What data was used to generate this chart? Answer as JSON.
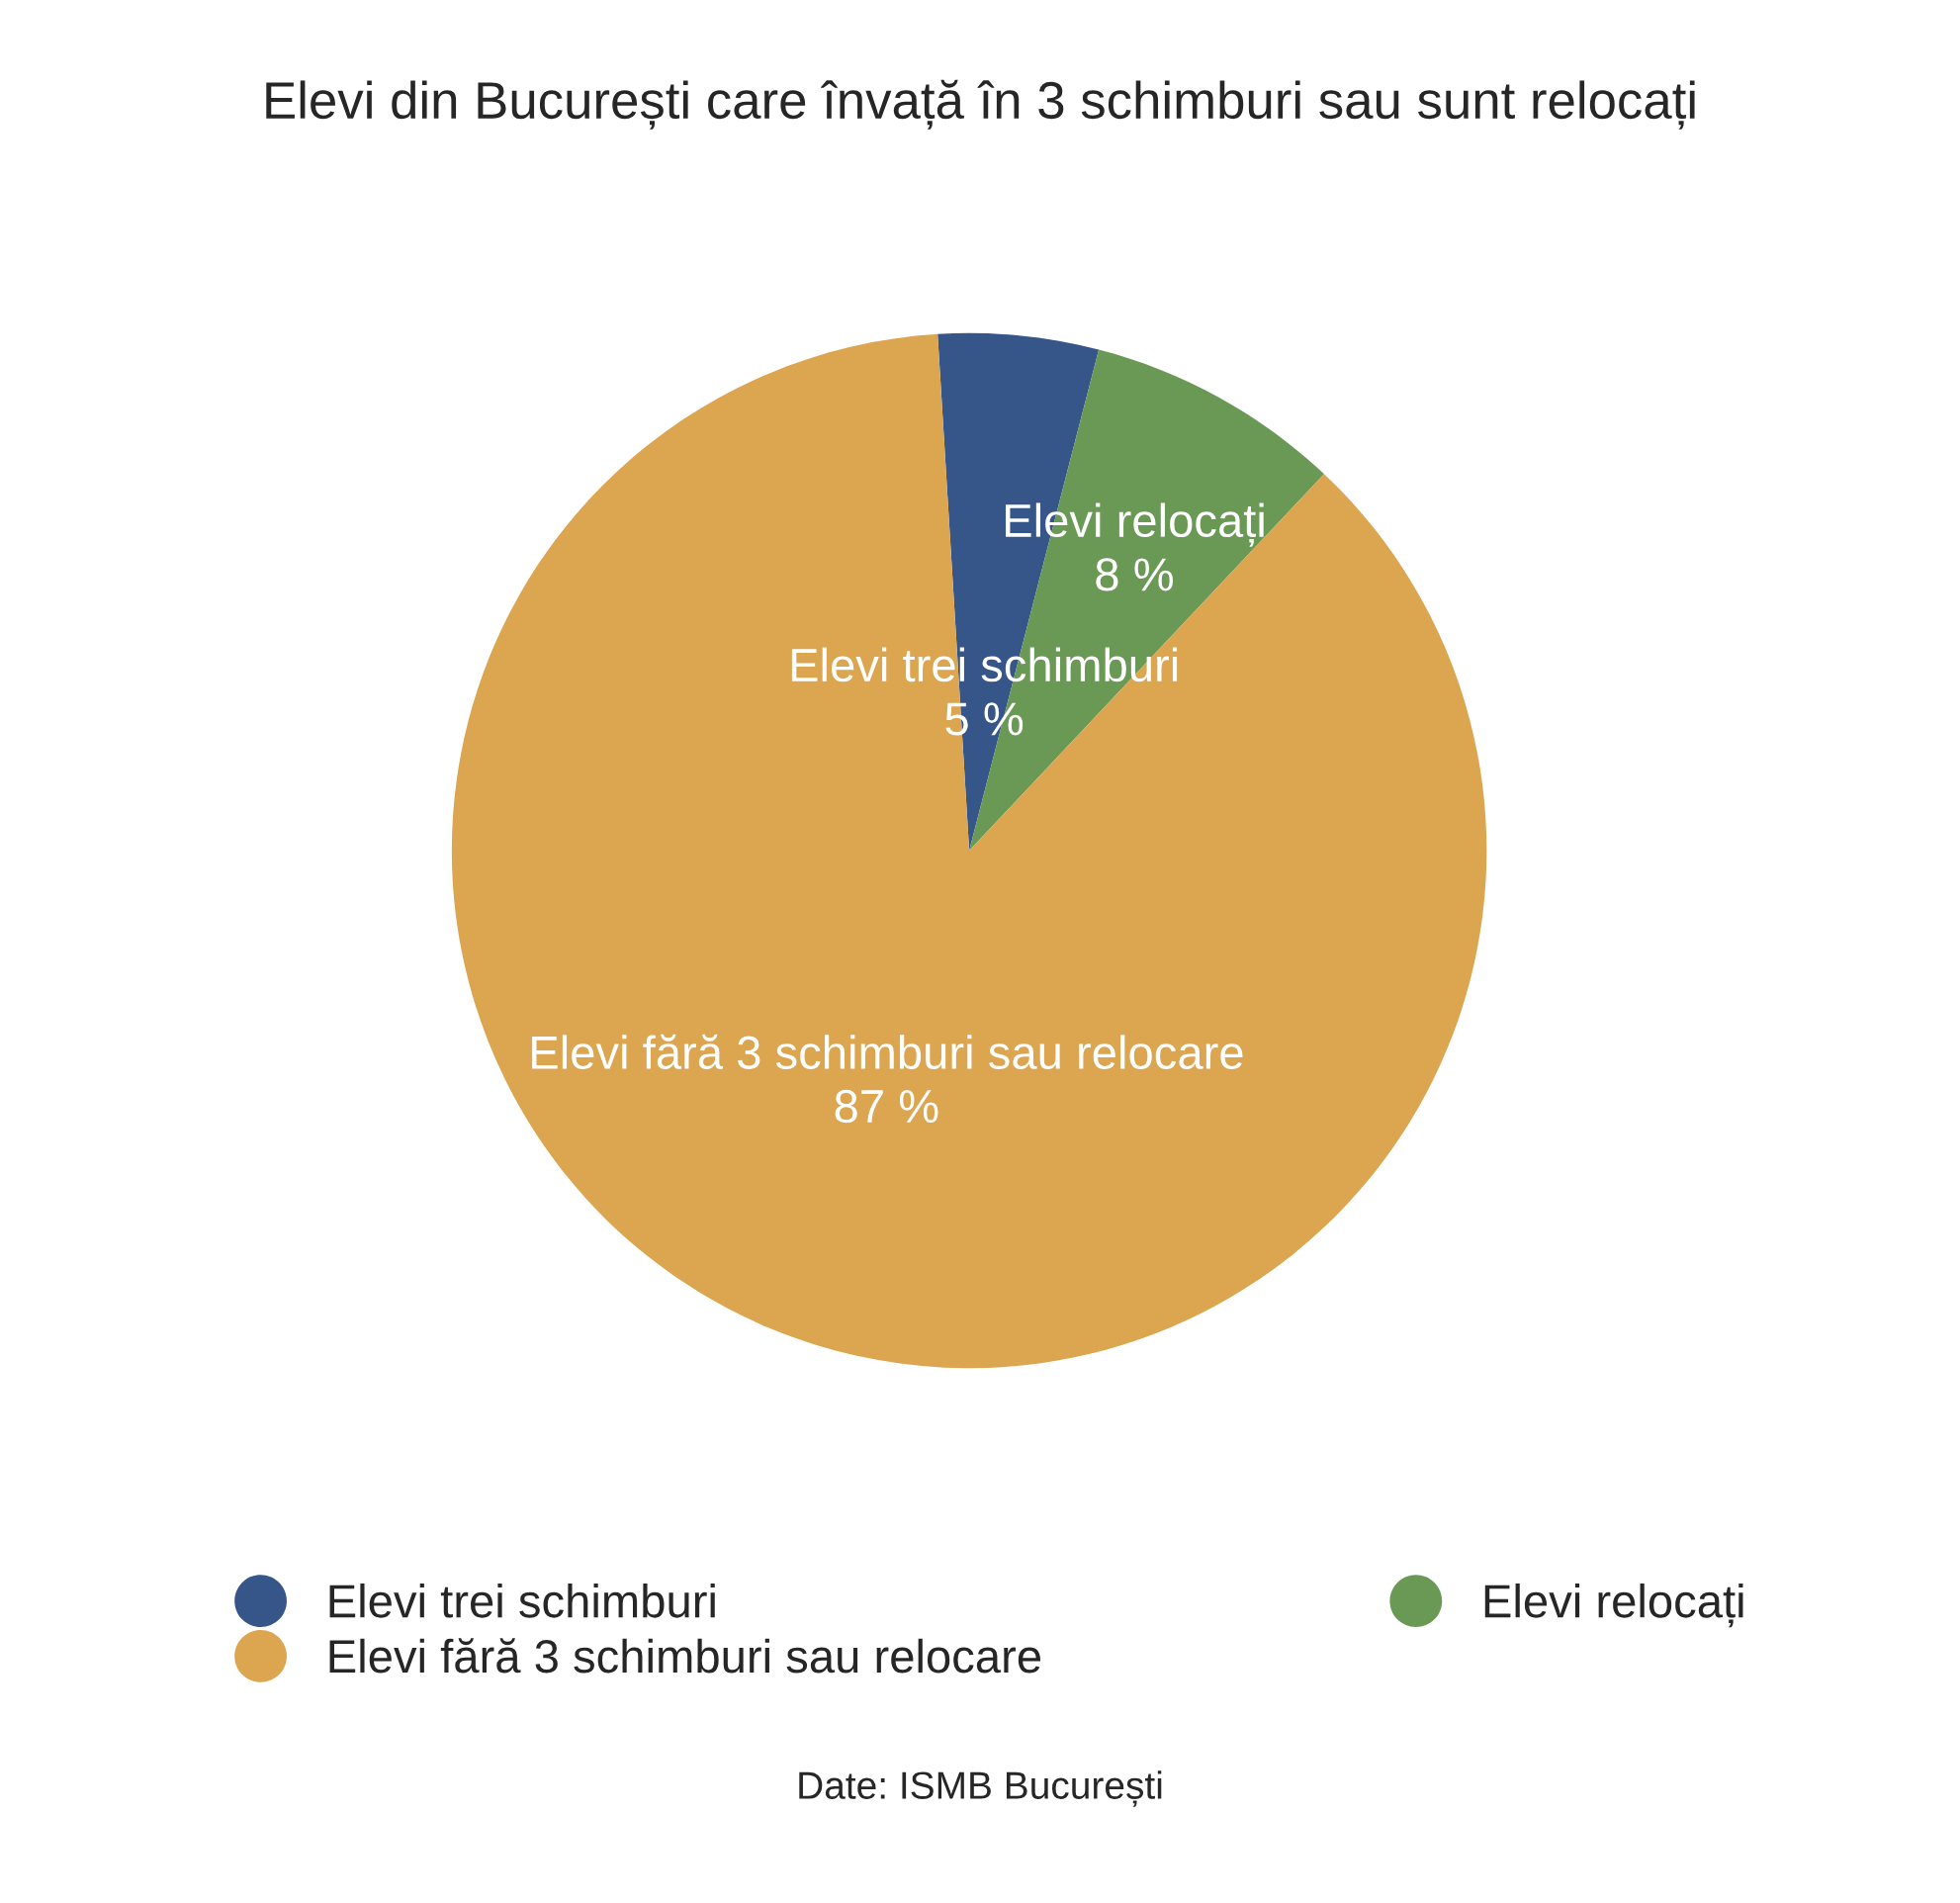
{
  "chart_data": {
    "type": "pie",
    "title": "Elevi din București care învață în 3 schimburi sau sunt relocați",
    "categories": [
      "Elevi trei schimburi",
      "Elevi relocați",
      "Elevi fără 3 schimburi sau relocare"
    ],
    "values": [
      5,
      8,
      87
    ],
    "value_labels": [
      "5 %",
      "8 %",
      "87 %"
    ],
    "colors": [
      "#36568a",
      "#6a9955",
      "#dca550"
    ],
    "legend": "bottom",
    "annotations": [
      "Date: ISMB București"
    ]
  }
}
